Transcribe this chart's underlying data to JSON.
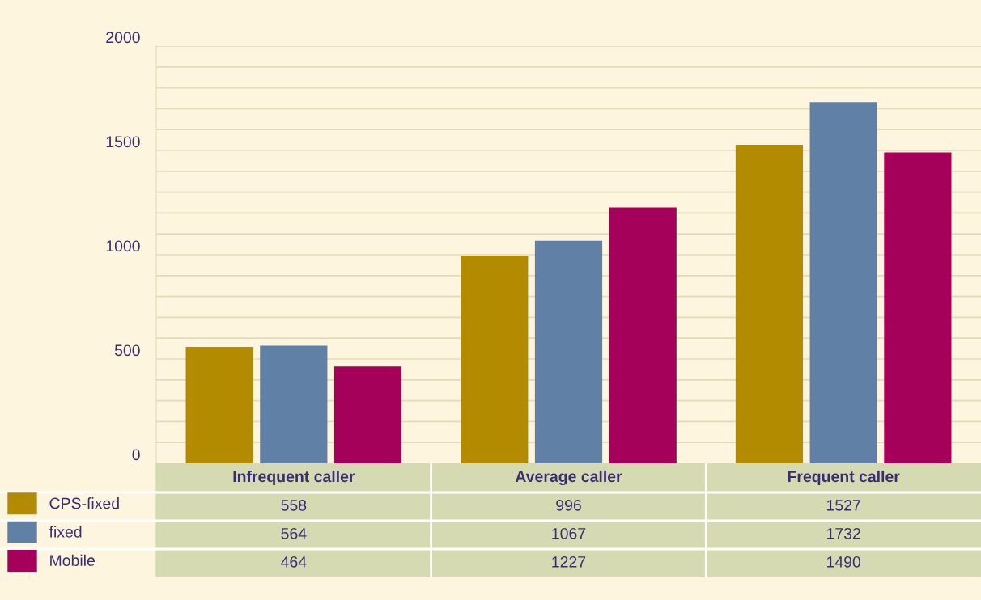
{
  "chart_data": {
    "type": "bar",
    "categories": [
      "Infrequent caller",
      "Average caller",
      "Frequent caller"
    ],
    "series": [
      {
        "name": "CPS-fixed",
        "color": "#b38b00",
        "values": [
          558,
          996,
          1527
        ]
      },
      {
        "name": "fixed",
        "color": "#6080a5",
        "values": [
          564,
          1067,
          1732
        ]
      },
      {
        "name": "Mobile",
        "color": "#a5005a",
        "values": [
          464,
          1227,
          1490
        ]
      }
    ],
    "ylim": [
      0,
      2000
    ],
    "yticks": [
      0,
      {
        "value": 100,
        "label": null
      },
      {
        "value": 200,
        "label": null
      },
      {
        "value": 300,
        "label": null
      },
      {
        "value": 400,
        "label": null
      },
      500,
      {
        "value": 600,
        "label": null
      },
      {
        "value": 700,
        "label": null
      },
      {
        "value": 800,
        "label": null
      },
      {
        "value": 900,
        "label": null
      },
      1000,
      {
        "value": 1100,
        "label": null
      },
      {
        "value": 1200,
        "label": null
      },
      {
        "value": 1300,
        "label": null
      },
      {
        "value": 1400,
        "label": null
      },
      1500,
      {
        "value": 1600,
        "label": null
      },
      {
        "value": 1700,
        "label": null
      },
      {
        "value": 1800,
        "label": null
      },
      {
        "value": 1900,
        "label": null
      },
      2000
    ],
    "grid": "y",
    "data_labels": true,
    "legend": "bottom left"
  }
}
